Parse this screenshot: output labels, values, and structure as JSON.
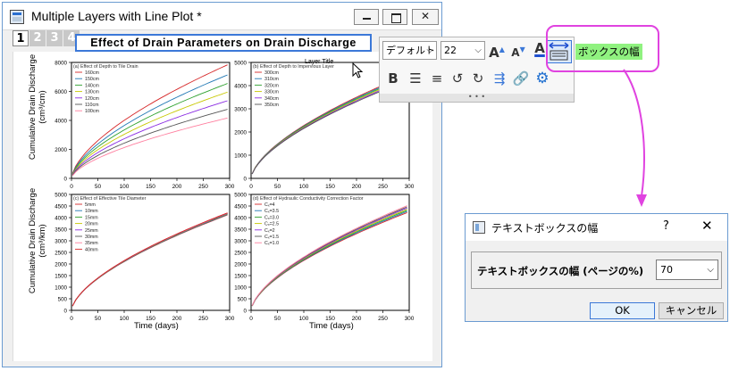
{
  "window": {
    "title": "Multiple Layers with Line Plot *",
    "layer_tabs": [
      "1",
      "2",
      "3",
      "4"
    ],
    "graph_title": "Effect of Drain Parameters on Drain Discharge",
    "layer_title_label": "Layer Title"
  },
  "axes": {
    "y_label_line1": "Cumulative Drain Discharge",
    "y_label_top_line2": "(cm³/cm)",
    "y_label_bottom_line2": "(cm³/km)",
    "x_label": "Time (days)"
  },
  "mini_toolbar": {
    "font": "デフォルト",
    "size": "22",
    "icons": [
      "increase-font-size-icon",
      "decrease-font-size-icon",
      "font-color-icon",
      "text-box-width-icon",
      "bold-icon",
      "align-icon",
      "spacing-icon",
      "rotate-left-icon",
      "rotate-right-icon",
      "connector-icon",
      "link-icon",
      "settings-gear-icon"
    ],
    "more_dots": "• • •"
  },
  "tooltip": "ボックスの幅",
  "dialog": {
    "title": "テキストボックスの幅",
    "help": "?",
    "close": "✕",
    "field_label": "テキストボックスの幅 (ページの%)",
    "field_value": "70",
    "ok": "OK",
    "cancel": "キャンセル"
  },
  "colors": {
    "accent": "#3b78d8",
    "callout": "#e043e0",
    "tooltip_bg": "#90f280",
    "series": [
      "#d62728",
      "#1f77b4",
      "#2ca02c",
      "#c8c800",
      "#8a2be2",
      "#555555",
      "#ff7f9f"
    ]
  },
  "chart_data": [
    {
      "type": "line",
      "title": "(a) Effect of Depth to Tile Drain",
      "xlim": [
        0,
        300
      ],
      "ylim": [
        0,
        8000
      ],
      "x_ticks": [
        0,
        50,
        100,
        150,
        200,
        250,
        300
      ],
      "y_ticks": [
        0,
        2000,
        4000,
        6000,
        8000
      ],
      "series": [
        {
          "name": "160cm",
          "end": 7900
        },
        {
          "name": "150cm",
          "end": 7200
        },
        {
          "name": "140cm",
          "end": 6600
        },
        {
          "name": "130cm",
          "end": 6000
        },
        {
          "name": "120cm",
          "end": 5400
        },
        {
          "name": "110cm",
          "end": 4800
        },
        {
          "name": "100cm",
          "end": 4200
        }
      ]
    },
    {
      "type": "line",
      "title": "(b) Effect of Depth to Impervious Layer",
      "xlim": [
        0,
        300
      ],
      "ylim": [
        0,
        5000
      ],
      "x_ticks": [
        0,
        50,
        100,
        150,
        200,
        250,
        300
      ],
      "y_ticks": [
        0,
        1000,
        2000,
        3000,
        4000,
        5000
      ],
      "series": [
        {
          "name": "300cm",
          "end": 4500
        },
        {
          "name": "310cm",
          "end": 4450
        },
        {
          "name": "320cm",
          "end": 4400
        },
        {
          "name": "330cm",
          "end": 4350
        },
        {
          "name": "340cm",
          "end": 4300
        },
        {
          "name": "350cm",
          "end": 4250
        }
      ]
    },
    {
      "type": "line",
      "title": "(c) Effect of Effective Tile Diameter",
      "xlim": [
        0,
        300
      ],
      "ylim": [
        0,
        5000
      ],
      "x_ticks": [
        0,
        50,
        100,
        150,
        200,
        250,
        300
      ],
      "y_ticks": [
        0,
        500,
        1000,
        1500,
        2000,
        2500,
        3000,
        3500,
        4000,
        4500,
        5000
      ],
      "series": [
        {
          "name": "5mm",
          "end": 4150
        },
        {
          "name": "10mm",
          "end": 4170
        },
        {
          "name": "15mm",
          "end": 4190
        },
        {
          "name": "20mm",
          "end": 4200
        },
        {
          "name": "25mm",
          "end": 4210
        },
        {
          "name": "30mm",
          "end": 4220
        },
        {
          "name": "35mm",
          "end": 4230
        },
        {
          "name": "40mm",
          "end": 4240
        }
      ]
    },
    {
      "type": "line",
      "title": "(d) Effect of Hydraulic Conductivity Correction Factor",
      "xlim": [
        0,
        300
      ],
      "ylim": [
        0,
        5000
      ],
      "x_ticks": [
        0,
        50,
        100,
        150,
        200,
        250,
        300
      ],
      "y_ticks": [
        0,
        500,
        1000,
        1500,
        2000,
        2500,
        3000,
        3500,
        4000,
        4500,
        5000
      ],
      "series": [
        {
          "name": "Cₓ=4",
          "end": 4250
        },
        {
          "name": "Cₓ=3.5",
          "end": 4300
        },
        {
          "name": "Cₓ=3.0",
          "end": 4350
        },
        {
          "name": "Cₓ=2.5",
          "end": 4400
        },
        {
          "name": "Cₓ=2",
          "end": 4450
        },
        {
          "name": "Cₓ=1.5",
          "end": 4500
        },
        {
          "name": "Cₓ=1.0",
          "end": 4550
        }
      ]
    }
  ]
}
